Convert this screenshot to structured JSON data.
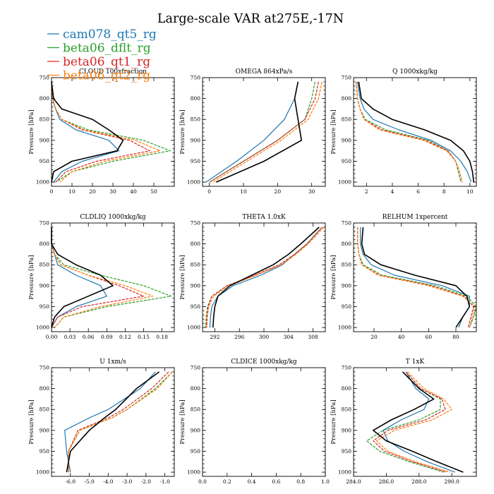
{
  "figure": {
    "title": "Large-scale VAR at275E,-17N"
  },
  "legend": [
    {
      "name": "cam078_qt5_rg",
      "color": "#1f77b4"
    },
    {
      "name": "beta06_dflt_rg",
      "color": "#2ca02c"
    },
    {
      "name": "beta06_qt1_rg",
      "color": "#d62728"
    },
    {
      "name": "beta06_qt2_rg",
      "color": "#ff7f0e"
    }
  ],
  "profile_color": "#000000",
  "chart_data": [
    {
      "type": "line",
      "title": "CLOUD 100xfraction",
      "ylabel": "Pressure [hPa]",
      "ylim": [
        1010,
        750
      ],
      "yticks": [
        750,
        800,
        850,
        900,
        950,
        1000
      ],
      "xlim": [
        0,
        60
      ],
      "xticks": [
        0,
        10,
        20,
        30,
        40,
        50
      ],
      "xtick_labels": [
        "0",
        "10",
        "20",
        "30",
        "40",
        "50"
      ],
      "y": [
        760,
        800,
        825,
        850,
        875,
        900,
        925,
        950,
        975,
        1000
      ],
      "series": [
        {
          "name": "cam078_qt5_rg",
          "x": [
            0,
            0.5,
            2,
            4,
            12,
            28,
            33,
            15,
            5,
            1
          ]
        },
        {
          "name": "beta06_dflt_rg",
          "x": [
            0,
            0.5,
            2,
            5,
            18,
            45,
            58,
            30,
            10,
            2
          ]
        },
        {
          "name": "beta06_qt1_rg",
          "x": [
            0,
            0.5,
            2,
            5,
            15,
            38,
            48,
            22,
            7,
            2
          ]
        },
        {
          "name": "beta06_qt2_rg",
          "x": [
            0,
            0.5,
            2,
            5,
            16,
            41,
            53,
            26,
            10,
            4
          ]
        },
        {
          "x": [
            0,
            1,
            5,
            20,
            28,
            35,
            32,
            10,
            1,
            0
          ]
        }
      ]
    },
    {
      "type": "line",
      "title": "OMEGA 864xPa/s",
      "ylabel": "Pressure [hPa]",
      "ylim": [
        1010,
        750
      ],
      "yticks": [
        750,
        800,
        850,
        900,
        950,
        1000
      ],
      "xlim": [
        -2,
        34
      ],
      "xticks": [
        0,
        10,
        20,
        30
      ],
      "xtick_labels": [
        "0",
        "10",
        "20",
        "30"
      ],
      "y": [
        760,
        800,
        850,
        900,
        950,
        1000
      ],
      "series": [
        {
          "name": "cam078_qt5_rg",
          "x": [
            26,
            25,
            22,
            16,
            8,
            -1
          ]
        },
        {
          "name": "beta06_dflt_rg",
          "x": [
            31,
            30,
            28,
            20,
            10,
            0
          ]
        },
        {
          "name": "beta06_qt1_rg",
          "x": [
            32,
            31,
            28,
            20,
            10,
            0
          ]
        },
        {
          "name": "beta06_qt2_rg",
          "x": [
            33,
            32,
            29,
            21,
            11,
            1
          ]
        },
        {
          "x": [
            26,
            25,
            26,
            27,
            16,
            2
          ]
        }
      ]
    },
    {
      "type": "line",
      "title": "Q 1000xkg/kg",
      "ylabel": "Pressure [hPa]",
      "ylim": [
        1010,
        750
      ],
      "yticks": [
        750,
        800,
        850,
        900,
        950,
        1000
      ],
      "xlim": [
        1,
        10.5
      ],
      "xticks": [
        2,
        4,
        6,
        8,
        10
      ],
      "xtick_labels": [
        "2",
        "4",
        "6",
        "8",
        "10"
      ],
      "y": [
        760,
        800,
        825,
        850,
        875,
        900,
        925,
        950,
        975,
        1000
      ],
      "series": [
        {
          "name": "cam078_qt5_rg",
          "x": [
            1.3,
            1.5,
            1.8,
            2.5,
            4.5,
            7.0,
            8.5,
            9.3,
            9.8,
            10.1
          ]
        },
        {
          "name": "beta06_dflt_rg",
          "x": [
            1.2,
            1.3,
            1.5,
            1.9,
            3.5,
            6.8,
            8.3,
            8.9,
            9.1,
            9.3
          ]
        },
        {
          "name": "beta06_qt1_rg",
          "x": [
            1.2,
            1.3,
            1.5,
            1.8,
            3.2,
            6.6,
            8.3,
            8.9,
            9.2,
            9.4
          ]
        },
        {
          "name": "beta06_qt2_rg",
          "x": [
            1.2,
            1.3,
            1.5,
            1.8,
            3.0,
            6.4,
            8.2,
            8.9,
            9.2,
            9.4
          ]
        },
        {
          "x": [
            1.4,
            1.6,
            2.5,
            4.0,
            6.5,
            8.5,
            9.5,
            10.0,
            10.2,
            10.3
          ]
        }
      ]
    },
    {
      "type": "line",
      "title": "CLDLIQ 1000xkg/kg",
      "ylabel": "Pressure [hPa]",
      "ylim": [
        1010,
        750
      ],
      "yticks": [
        750,
        800,
        850,
        900,
        950,
        1000
      ],
      "xlim": [
        0,
        0.2
      ],
      "xticks": [
        0.0,
        0.03,
        0.06,
        0.09,
        0.12,
        0.15,
        0.18
      ],
      "xtick_labels": [
        "0.00",
        "0.03",
        "0.06",
        "0.09",
        "0.12",
        "0.15",
        "0.18"
      ],
      "y": [
        760,
        800,
        825,
        850,
        875,
        900,
        925,
        950,
        975,
        1000
      ],
      "series": [
        {
          "name": "cam078_qt5_rg",
          "x": [
            0,
            0,
            0.005,
            0.01,
            0.04,
            0.08,
            0.09,
            0.04,
            0.01,
            0
          ]
        },
        {
          "name": "beta06_dflt_rg",
          "x": [
            0,
            0,
            0.005,
            0.02,
            0.08,
            0.15,
            0.195,
            0.09,
            0.02,
            0.005
          ]
        },
        {
          "name": "beta06_qt1_rg",
          "x": [
            0,
            0,
            0.005,
            0.015,
            0.06,
            0.11,
            0.15,
            0.05,
            0.01,
            0
          ]
        },
        {
          "name": "beta06_qt2_rg",
          "x": [
            0,
            0,
            0.005,
            0.015,
            0.06,
            0.12,
            0.165,
            0.08,
            0.02,
            0.005
          ]
        },
        {
          "x": [
            0,
            0,
            0.01,
            0.04,
            0.08,
            0.1,
            0.06,
            0.02,
            0.005,
            0
          ]
        }
      ]
    },
    {
      "type": "line",
      "title": "THETA 1.0xK",
      "ylabel": "Pressure [hPa]",
      "ylim": [
        1010,
        750
      ],
      "yticks": [
        750,
        800,
        850,
        900,
        950,
        1000
      ],
      "xlim": [
        290,
        310
      ],
      "xticks": [
        292,
        296,
        300,
        304,
        308
      ],
      "xtick_labels": [
        "292",
        "296",
        "300",
        "304",
        "308"
      ],
      "y": [
        760,
        800,
        825,
        850,
        875,
        900,
        925,
        950,
        975,
        1000
      ],
      "series": [
        {
          "name": "cam078_qt5_rg",
          "x": [
            309.5,
            307,
            305,
            303,
            299.5,
            295,
            292.5,
            291.5,
            291.3,
            291.2
          ]
        },
        {
          "name": "beta06_dflt_rg",
          "x": [
            309.5,
            307,
            305,
            302.5,
            298.5,
            294,
            291.5,
            290.8,
            290.6,
            290.5
          ]
        },
        {
          "name": "beta06_qt1_rg",
          "x": [
            309.5,
            307,
            305,
            302.5,
            298.5,
            294,
            291.5,
            290.9,
            290.7,
            290.6
          ]
        },
        {
          "name": "beta06_qt2_rg",
          "x": [
            309.8,
            307.2,
            305.2,
            302.8,
            298.8,
            294.3,
            291.8,
            291,
            290.8,
            290.7
          ]
        },
        {
          "x": [
            309,
            306,
            304,
            301.5,
            298,
            294.5,
            292.5,
            292,
            291.8,
            291.7
          ]
        }
      ]
    },
    {
      "type": "line",
      "title": "RELHUM 1xpercent",
      "ylabel": "Pressure [hPa]",
      "ylim": [
        1010,
        750
      ],
      "yticks": [
        750,
        800,
        850,
        900,
        950,
        1000
      ],
      "xlim": [
        5,
        95
      ],
      "xticks": [
        20,
        40,
        60,
        80
      ],
      "xtick_labels": [
        "20",
        "40",
        "60",
        "80"
      ],
      "y": [
        760,
        800,
        825,
        850,
        875,
        900,
        925,
        950,
        975,
        1000
      ],
      "series": [
        {
          "name": "cam078_qt5_rg",
          "x": [
            10,
            10,
            12,
            18,
            35,
            70,
            90,
            90,
            85,
            82
          ]
        },
        {
          "name": "beta06_dflt_rg",
          "x": [
            8,
            8,
            9,
            12,
            26,
            65,
            88,
            95,
            93,
            90
          ]
        },
        {
          "name": "beta06_qt1_rg",
          "x": [
            8,
            8,
            9,
            11,
            24,
            62,
            86,
            93,
            91,
            89
          ]
        },
        {
          "name": "beta06_qt2_rg",
          "x": [
            8,
            8,
            9,
            11,
            23,
            60,
            85,
            94,
            92,
            90
          ]
        },
        {
          "x": [
            12,
            11,
            13,
            25,
            50,
            80,
            88,
            90,
            85,
            80
          ]
        }
      ]
    },
    {
      "type": "line",
      "title": "U 1xm/s",
      "ylabel": "Pressure [hPa]",
      "ylim": [
        1010,
        750
      ],
      "yticks": [
        750,
        800,
        850,
        900,
        950,
        1000
      ],
      "xlim": [
        -7,
        -0.5
      ],
      "xticks": [
        -6.0,
        -5.0,
        -4.0,
        -3.0,
        -2.0,
        -1.0
      ],
      "xtick_labels": [
        "-6.0",
        "-5.0",
        "-4.0",
        "-3.0",
        "-2.0",
        "-1.0"
      ],
      "y": [
        760,
        800,
        850,
        870,
        900,
        950,
        1000
      ],
      "series": [
        {
          "name": "cam078_qt5_rg",
          "x": [
            -1.5,
            -2.3,
            -4.0,
            -5.0,
            -6.3,
            -6.2,
            -6.0
          ]
        },
        {
          "name": "beta06_dflt_rg",
          "x": [
            -0.6,
            -1.5,
            -3.0,
            -3.8,
            -5.5,
            -6.1,
            -6.1
          ]
        },
        {
          "name": "beta06_qt1_rg",
          "x": [
            -0.8,
            -1.7,
            -3.2,
            -4.0,
            -5.6,
            -6.1,
            -6.1
          ]
        },
        {
          "name": "beta06_qt2_rg",
          "x": [
            -0.6,
            -1.4,
            -3.0,
            -3.8,
            -5.5,
            -6.1,
            -6.1
          ]
        },
        {
          "x": [
            -1.3,
            -2.5,
            -3.6,
            -4.2,
            -5.0,
            -6.0,
            -6.2
          ]
        }
      ]
    },
    {
      "type": "line",
      "title": "CLDICE 1000xkg/kg",
      "ylabel": "Pressure [hPa]",
      "ylim": [
        1010,
        750
      ],
      "yticks": [
        750,
        800,
        850,
        900,
        950,
        1000
      ],
      "xlim": [
        0,
        1
      ],
      "xticks": [
        0.0,
        0.2,
        0.4,
        0.6,
        0.8,
        1.0
      ],
      "xtick_labels": [
        "0.0",
        "0.2",
        "0.4",
        "0.6",
        "0.8",
        "1.0"
      ],
      "y": [],
      "series": []
    },
    {
      "type": "line",
      "title": "T 1xK",
      "ylabel": "Pressure [hPa]",
      "ylim": [
        1010,
        750
      ],
      "yticks": [
        750,
        800,
        850,
        900,
        950,
        1000
      ],
      "xlim": [
        284,
        291.5
      ],
      "xticks": [
        284,
        286,
        288,
        290
      ],
      "xtick_labels": [
        "284.0",
        "286.0",
        "288.0",
        "290.0"
      ],
      "y": [
        760,
        800,
        825,
        850,
        875,
        900,
        925,
        950,
        975,
        1000
      ],
      "series": [
        {
          "name": "cam078_qt5_rg",
          "x": [
            287.2,
            287.8,
            288.6,
            288.3,
            286.9,
            285.8,
            286.1,
            287.1,
            288.5,
            290.2
          ]
        },
        {
          "name": "beta06_dflt_rg",
          "x": [
            287.2,
            288.1,
            289.3,
            289.3,
            288.0,
            285.8,
            284.8,
            285.6,
            287.4,
            289.5
          ]
        },
        {
          "name": "beta06_qt1_rg",
          "x": [
            287.2,
            288.1,
            289.4,
            289.6,
            288.4,
            286.1,
            285.2,
            285.9,
            287.6,
            289.7
          ]
        },
        {
          "name": "beta06_qt2_rg",
          "x": [
            287.3,
            288.3,
            289.5,
            290.0,
            288.8,
            286.5,
            285.4,
            286.1,
            287.8,
            289.9
          ]
        },
        {
          "x": [
            287.0,
            288.0,
            288.9,
            287.7,
            286.3,
            285.2,
            286.0,
            287.6,
            289.1,
            290.7
          ]
        }
      ]
    }
  ]
}
